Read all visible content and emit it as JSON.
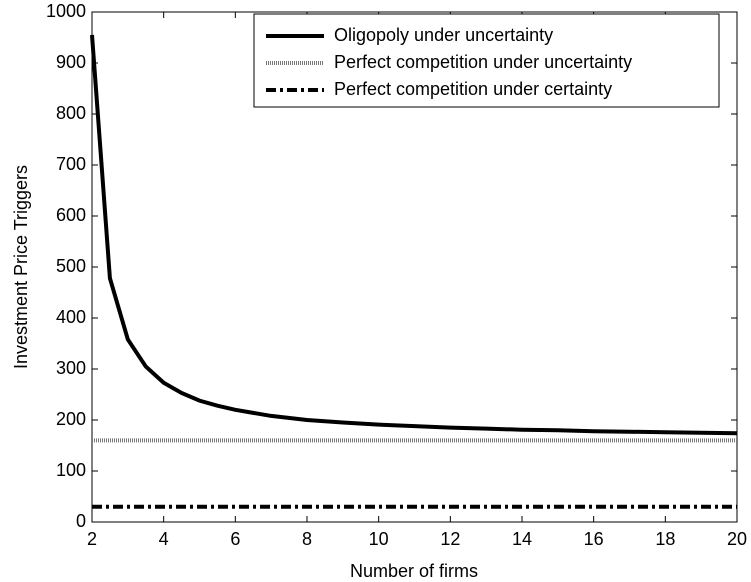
{
  "chart_data": {
    "type": "line",
    "x_label": "Number of firms",
    "y_label": "Investment Price Triggers",
    "xlim": [
      2,
      20
    ],
    "ylim": [
      0,
      1000
    ],
    "xticks": [
      2,
      4,
      6,
      8,
      10,
      12,
      14,
      16,
      18,
      20
    ],
    "yticks": [
      0,
      100,
      200,
      300,
      400,
      500,
      600,
      700,
      800,
      900,
      1000
    ],
    "legend": "upper right",
    "series": [
      {
        "name": "Oligopoly under uncertainty",
        "color": "#000000",
        "dash": "solid",
        "x": [
          2,
          2.5,
          3,
          3.5,
          4,
          4.5,
          5,
          5.5,
          6,
          7,
          8,
          9,
          10,
          11,
          12,
          13,
          14,
          15,
          16,
          17,
          18,
          19,
          20
        ],
        "values": [
          955,
          478,
          358,
          305,
          273,
          253,
          238,
          228,
          220,
          208,
          200,
          195,
          191,
          188,
          185,
          183,
          181,
          180,
          178,
          177,
          176,
          175,
          174
        ]
      },
      {
        "name": "Perfect competition under uncertainty",
        "color": "#777777",
        "dash": "dotted",
        "x": [
          2,
          20
        ],
        "values": [
          160,
          160
        ]
      },
      {
        "name": "Perfect competition under certainty",
        "color": "#000000",
        "dash": "dashdot",
        "x": [
          2,
          20
        ],
        "values": [
          30,
          30
        ]
      }
    ]
  }
}
